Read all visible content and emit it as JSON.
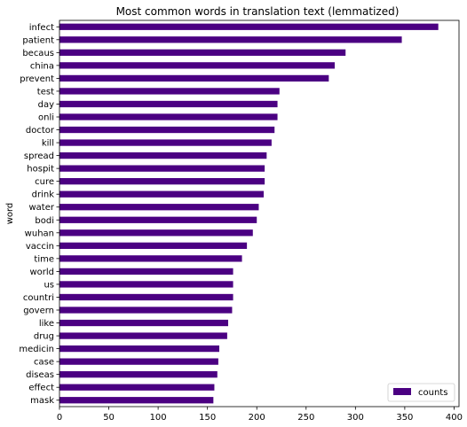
{
  "chart_data": {
    "type": "bar",
    "orientation": "horizontal",
    "title": "Most common words in translation text (lemmatized)",
    "xlabel": "",
    "ylabel": "word",
    "xlim": [
      0,
      405
    ],
    "xticks": [
      0,
      50,
      100,
      150,
      200,
      250,
      300,
      350,
      400
    ],
    "legend_position": "bottom-right",
    "bar_color": "#4b0082",
    "categories": [
      "infect",
      "patient",
      "becaus",
      "china",
      "prevent",
      "test",
      "day",
      "onli",
      "doctor",
      "kill",
      "spread",
      "hospit",
      "cure",
      "drink",
      "water",
      "bodi",
      "wuhan",
      "vaccin",
      "time",
      "world",
      "us",
      "countri",
      "govern",
      "like",
      "drug",
      "medicin",
      "case",
      "diseas",
      "effect",
      "mask"
    ],
    "series": [
      {
        "name": "counts",
        "values": [
          384,
          347,
          290,
          279,
          273,
          223,
          221,
          221,
          218,
          215,
          210,
          208,
          208,
          207,
          202,
          200,
          196,
          190,
          185,
          176,
          176,
          176,
          175,
          171,
          170,
          162,
          161,
          160,
          157,
          156
        ]
      }
    ]
  }
}
